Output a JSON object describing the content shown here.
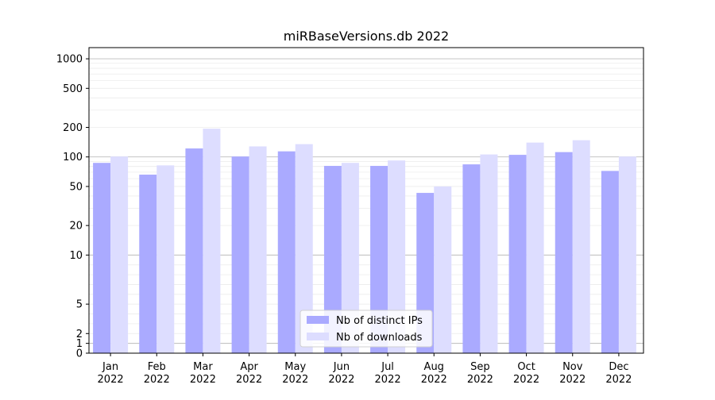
{
  "chart_data": {
    "type": "bar",
    "title": "miRBaseVersions.db 2022",
    "xlabel": "",
    "ylabel": "",
    "yscale": "symlog",
    "ylim": [
      0,
      1300
    ],
    "yticks": [
      0,
      1,
      2,
      5,
      10,
      20,
      50,
      100,
      200,
      500,
      1000
    ],
    "categories": [
      "Jan\n2022",
      "Feb\n2022",
      "Mar\n2022",
      "Apr\n2022",
      "May\n2022",
      "Jun\n2022",
      "Jul\n2022",
      "Aug\n2022",
      "Sep\n2022",
      "Oct\n2022",
      "Nov\n2022",
      "Dec\n2022"
    ],
    "series": [
      {
        "name": "Nb of distinct IPs",
        "color": "#aaaaff",
        "values": [
          87,
          66,
          122,
          101,
          114,
          81,
          81,
          43,
          84,
          105,
          112,
          72
        ]
      },
      {
        "name": "Nb of downloads",
        "color": "#ddddff",
        "values": [
          101,
          82,
          194,
          128,
          135,
          87,
          92,
          50,
          106,
          140,
          148,
          101
        ]
      }
    ],
    "legend": "lower center",
    "grid": true
  }
}
